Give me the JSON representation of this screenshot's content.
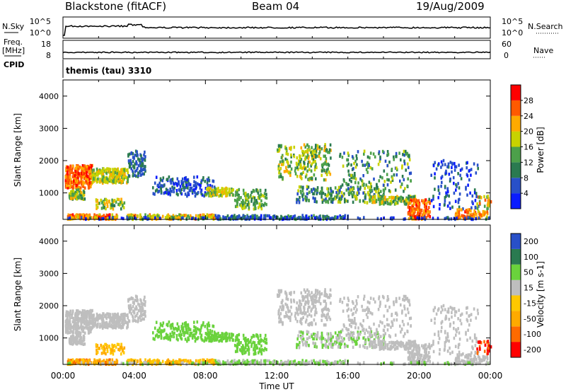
{
  "header": {
    "station": "Blackstone (fitACF)",
    "beam": "Beam 04",
    "date": "19/Aug/2009"
  },
  "side_labels": {
    "nsky": "N.Sky",
    "freq": "Freq.",
    "freq_unit": "[MHz]",
    "cpid": "CPID",
    "nsearch": "N.Search",
    "nave": "Nave",
    "nsky_top": "10^5",
    "nsky_bottom": "10^0",
    "freq_top": "18",
    "freq_bottom": "8",
    "nave_top": "60",
    "nave_bottom": "0"
  },
  "cpid_label": "themis (tau) 3310",
  "colors": {
    "power": [
      "#0a1cff",
      "#2850c8",
      "#2a7a50",
      "#4ca04a",
      "#c8d200",
      "#ffaa00",
      "#ff5a00",
      "#ff0000"
    ],
    "velocity": [
      "#ff0000",
      "#ff6a00",
      "#ffaa00",
      "#ffc800",
      "#bebebe",
      "#6ad23c",
      "#2a7a50",
      "#2850c8"
    ],
    "line": "#000000"
  },
  "chart_data": [
    {
      "type": "heatmap",
      "name": "Power",
      "xlabel": "",
      "ylabel": "Slant Range [km]",
      "xlim": [
        0,
        24
      ],
      "ylim": [
        180,
        4500
      ],
      "yticks": [
        "1000",
        "2000",
        "3000",
        "4000"
      ],
      "colorbar_label": "Power [dB]",
      "colorbar_ticks": [
        "4",
        "8",
        "12",
        "16",
        "20",
        "24",
        "28"
      ],
      "colorbar_range": [
        0,
        32
      ]
    },
    {
      "type": "heatmap",
      "name": "Velocity",
      "xlabel": "Time UT",
      "ylabel": "Slant Range [km]",
      "xlim": [
        0,
        24
      ],
      "ylim": [
        180,
        4500
      ],
      "xticks": [
        "00:00",
        "04:00",
        "08:00",
        "12:00",
        "16:00",
        "20:00",
        "00:00"
      ],
      "yticks": [
        "1000",
        "2000",
        "3000",
        "4000"
      ],
      "colorbar_label": "Velocity [m s-1]",
      "colorbar_ticks": [
        "-200",
        "-100",
        "-50",
        "-15",
        "15",
        "50",
        "100",
        "200"
      ]
    }
  ]
}
